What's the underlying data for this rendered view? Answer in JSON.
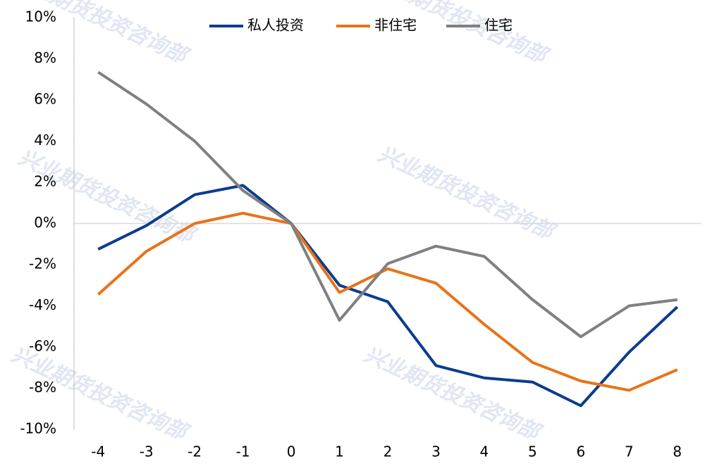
{
  "chart_data": {
    "type": "line",
    "watermark": "兴业期货投资咨询部",
    "x": [
      -4,
      -3,
      -2,
      -1,
      0,
      1,
      2,
      3,
      4,
      5,
      6,
      7,
      8
    ],
    "xlim": [
      -4.5,
      8.5
    ],
    "xticks": [
      -4,
      -3,
      -2,
      -1,
      0,
      1,
      2,
      3,
      4,
      5,
      6,
      7,
      8
    ],
    "ylim": [
      -10,
      10
    ],
    "yticks": [
      {
        "value": -10,
        "label": "-10%"
      },
      {
        "value": -8,
        "label": "-8%"
      },
      {
        "value": -6,
        "label": "-6%"
      },
      {
        "value": -4,
        "label": "-4%"
      },
      {
        "value": -2,
        "label": "-2%"
      },
      {
        "value": 0,
        "label": "0%"
      },
      {
        "value": 2,
        "label": "2%"
      },
      {
        "value": 4,
        "label": "4%"
      },
      {
        "value": 6,
        "label": "6%"
      },
      {
        "value": 8,
        "label": "8%"
      },
      {
        "value": 10,
        "label": "10%"
      }
    ],
    "grid": false,
    "legend": "top",
    "series": [
      {
        "name": "私人投资",
        "color": "#0b3c8f",
        "values": [
          -1.25,
          -0.1,
          1.4,
          1.85,
          0,
          -3.0,
          -3.8,
          -6.9,
          -7.5,
          -7.7,
          -8.85,
          -6.25,
          -4.05
        ]
      },
      {
        "name": "非住宅",
        "color": "#e8731a",
        "values": [
          -3.45,
          -1.35,
          0,
          0.5,
          0,
          -3.35,
          -2.2,
          -2.9,
          -4.9,
          -6.75,
          -7.65,
          -8.1,
          -7.1
        ]
      },
      {
        "name": "住宅",
        "color": "#808080",
        "values": [
          7.35,
          5.8,
          4.0,
          1.6,
          0,
          -4.7,
          -1.95,
          -1.1,
          -1.6,
          -3.7,
          -5.5,
          -4.0,
          -3.7
        ]
      }
    ]
  }
}
